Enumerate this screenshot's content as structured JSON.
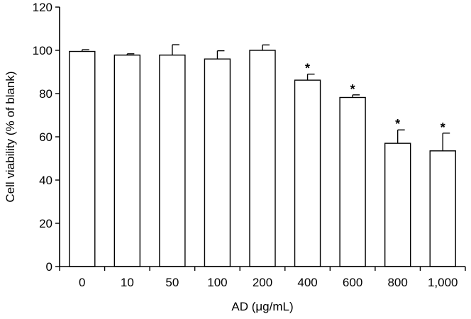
{
  "chart_data": {
    "type": "bar",
    "categories": [
      "0",
      "10",
      "50",
      "100",
      "200",
      "400",
      "600",
      "800",
      "1,000"
    ],
    "values": [
      99.5,
      97.8,
      97.8,
      96.0,
      100.0,
      86.2,
      78.2,
      57.0,
      53.5
    ],
    "errors": [
      0.8,
      0.6,
      4.8,
      3.8,
      2.5,
      2.8,
      1.2,
      6.2,
      8.2
    ],
    "significance": [
      "",
      "",
      "",
      "",
      "",
      "*",
      "*",
      "*",
      "*"
    ],
    "xlabel": "AD (μg/mL)",
    "ylabel": "Cell viability (% of blank)",
    "ylim": [
      0,
      120
    ],
    "yticks": [
      "0",
      "20",
      "40",
      "60",
      "80",
      "100",
      "120"
    ],
    "grid": false,
    "legend": "none"
  }
}
